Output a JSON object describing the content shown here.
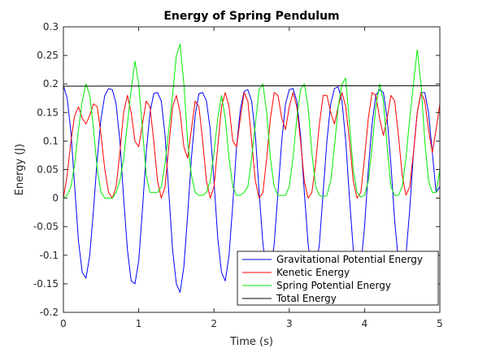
{
  "chart_data": {
    "type": "line",
    "title": "Energy of Spring Pendulum",
    "xlabel": "Time (s)",
    "ylabel": "Energy (J)",
    "xlim": [
      0,
      5
    ],
    "ylim": [
      -0.2,
      0.3
    ],
    "xticks": [
      0,
      1,
      2,
      3,
      4,
      5
    ],
    "xtick_labels": [
      "0",
      "1",
      "2",
      "3",
      "4",
      "5"
    ],
    "yticks": [
      -0.2,
      -0.15,
      -0.1,
      -0.05,
      0,
      0.05,
      0.1,
      0.15,
      0.2,
      0.25,
      0.3
    ],
    "ytick_labels": [
      "-0.2",
      "-0.15",
      "-0.1",
      "-0.05",
      "0",
      "0.05",
      "0.1",
      "0.15",
      "0.2",
      "0.25",
      "0.3"
    ],
    "grid": false,
    "legend_position": "bottom-right",
    "series": [
      {
        "name": "Gravitational Potential Energy",
        "color": "#0000ff",
        "x": [
          0,
          0.05,
          0.1,
          0.15,
          0.2,
          0.25,
          0.3,
          0.35,
          0.4,
          0.45,
          0.5,
          0.55,
          0.6,
          0.65,
          0.7,
          0.75,
          0.8,
          0.85,
          0.9,
          0.95,
          1.0,
          1.05,
          1.1,
          1.15,
          1.2,
          1.25,
          1.3,
          1.35,
          1.4,
          1.45,
          1.5,
          1.55,
          1.6,
          1.65,
          1.7,
          1.75,
          1.8,
          1.85,
          1.9,
          1.95,
          2.0,
          2.05,
          2.1,
          2.15,
          2.2,
          2.25,
          2.3,
          2.35,
          2.4,
          2.45,
          2.5,
          2.55,
          2.6,
          2.65,
          2.7,
          2.75,
          2.8,
          2.85,
          2.9,
          2.95,
          3.0,
          3.05,
          3.1,
          3.15,
          3.2,
          3.25,
          3.3,
          3.35,
          3.4,
          3.45,
          3.5,
          3.55,
          3.6,
          3.65,
          3.7,
          3.75,
          3.8,
          3.85,
          3.9,
          3.95,
          4.0,
          4.05,
          4.1,
          4.15,
          4.2,
          4.25,
          4.3,
          4.35,
          4.4,
          4.45,
          4.5,
          4.55,
          4.6,
          4.65,
          4.7,
          4.75,
          4.8,
          4.85,
          4.9,
          4.95,
          5.0
        ],
        "y": [
          0.197,
          0.175,
          0.115,
          0.02,
          -0.075,
          -0.13,
          -0.14,
          -0.1,
          -0.02,
          0.07,
          0.14,
          0.18,
          0.192,
          0.19,
          0.165,
          0.1,
          0.0,
          -0.09,
          -0.145,
          -0.15,
          -0.11,
          -0.02,
          0.08,
          0.15,
          0.183,
          0.185,
          0.17,
          0.11,
          0.01,
          -0.09,
          -0.15,
          -0.165,
          -0.12,
          -0.03,
          0.07,
          0.145,
          0.183,
          0.185,
          0.17,
          0.12,
          0.03,
          -0.07,
          -0.13,
          -0.145,
          -0.1,
          -0.01,
          0.09,
          0.155,
          0.187,
          0.19,
          0.17,
          0.11,
          0.01,
          -0.08,
          -0.13,
          -0.13,
          -0.08,
          0.01,
          0.1,
          0.165,
          0.19,
          0.192,
          0.17,
          0.11,
          0.01,
          -0.08,
          -0.13,
          -0.13,
          -0.08,
          0.01,
          0.1,
          0.165,
          0.192,
          0.195,
          0.17,
          0.1,
          0.0,
          -0.09,
          -0.13,
          -0.12,
          -0.05,
          0.05,
          0.13,
          0.18,
          0.19,
          0.185,
          0.14,
          0.06,
          -0.04,
          -0.11,
          -0.13,
          -0.1,
          -0.02,
          0.08,
          0.15,
          0.185,
          0.185,
          0.15,
          0.08,
          0.01,
          0.02
        ]
      },
      {
        "name": "Kenetic Energy",
        "color": "#ff0000",
        "x": [
          0,
          0.05,
          0.1,
          0.15,
          0.2,
          0.25,
          0.3,
          0.35,
          0.4,
          0.45,
          0.5,
          0.55,
          0.6,
          0.65,
          0.7,
          0.75,
          0.8,
          0.85,
          0.9,
          0.95,
          1.0,
          1.05,
          1.1,
          1.15,
          1.2,
          1.25,
          1.3,
          1.35,
          1.4,
          1.45,
          1.5,
          1.55,
          1.6,
          1.65,
          1.7,
          1.75,
          1.8,
          1.85,
          1.9,
          1.95,
          2.0,
          2.05,
          2.1,
          2.15,
          2.2,
          2.25,
          2.3,
          2.35,
          2.4,
          2.45,
          2.5,
          2.55,
          2.6,
          2.65,
          2.7,
          2.75,
          2.8,
          2.85,
          2.9,
          2.95,
          3.0,
          3.05,
          3.1,
          3.15,
          3.2,
          3.25,
          3.3,
          3.35,
          3.4,
          3.45,
          3.5,
          3.55,
          3.6,
          3.65,
          3.7,
          3.75,
          3.8,
          3.85,
          3.9,
          3.95,
          4.0,
          4.05,
          4.1,
          4.15,
          4.2,
          4.25,
          4.3,
          4.35,
          4.4,
          4.45,
          4.5,
          4.55,
          4.6,
          4.65,
          4.7,
          4.75,
          4.8,
          4.85,
          4.9,
          4.95,
          5.0
        ],
        "y": [
          0.0,
          0.04,
          0.1,
          0.145,
          0.16,
          0.14,
          0.13,
          0.145,
          0.165,
          0.16,
          0.11,
          0.05,
          0.01,
          0.0,
          0.02,
          0.08,
          0.15,
          0.18,
          0.15,
          0.1,
          0.09,
          0.13,
          0.17,
          0.16,
          0.1,
          0.03,
          0.0,
          0.02,
          0.09,
          0.16,
          0.18,
          0.15,
          0.09,
          0.07,
          0.12,
          0.17,
          0.16,
          0.1,
          0.03,
          0.0,
          0.02,
          0.09,
          0.16,
          0.185,
          0.16,
          0.1,
          0.09,
          0.14,
          0.185,
          0.17,
          0.1,
          0.03,
          0.0,
          0.01,
          0.07,
          0.14,
          0.185,
          0.18,
          0.14,
          0.12,
          0.16,
          0.185,
          0.16,
          0.1,
          0.03,
          0.0,
          0.01,
          0.06,
          0.13,
          0.18,
          0.18,
          0.15,
          0.13,
          0.16,
          0.185,
          0.16,
          0.1,
          0.03,
          0.0,
          0.01,
          0.07,
          0.14,
          0.185,
          0.18,
          0.14,
          0.11,
          0.14,
          0.18,
          0.17,
          0.11,
          0.04,
          0.005,
          0.02,
          0.08,
          0.15,
          0.185,
          0.17,
          0.12,
          0.08,
          0.12,
          0.165
        ]
      },
      {
        "name": "Spring Potential Energy",
        "color": "#00ee00",
        "x": [
          0,
          0.05,
          0.1,
          0.15,
          0.2,
          0.25,
          0.3,
          0.35,
          0.4,
          0.45,
          0.5,
          0.55,
          0.6,
          0.65,
          0.7,
          0.75,
          0.8,
          0.85,
          0.9,
          0.95,
          1.0,
          1.05,
          1.1,
          1.15,
          1.2,
          1.25,
          1.3,
          1.35,
          1.4,
          1.45,
          1.5,
          1.55,
          1.6,
          1.65,
          1.7,
          1.75,
          1.8,
          1.85,
          1.9,
          1.95,
          2.0,
          2.05,
          2.1,
          2.15,
          2.2,
          2.25,
          2.3,
          2.35,
          2.4,
          2.45,
          2.5,
          2.55,
          2.6,
          2.65,
          2.7,
          2.75,
          2.8,
          2.85,
          2.9,
          2.95,
          3.0,
          3.05,
          3.1,
          3.15,
          3.2,
          3.25,
          3.3,
          3.35,
          3.4,
          3.45,
          3.5,
          3.55,
          3.6,
          3.65,
          3.7,
          3.75,
          3.8,
          3.85,
          3.9,
          3.95,
          4.0,
          4.05,
          4.1,
          4.15,
          4.2,
          4.25,
          4.3,
          4.35,
          4.4,
          4.45,
          4.5,
          4.55,
          4.6,
          4.65,
          4.7,
          4.75,
          4.8,
          4.85,
          4.9,
          4.95,
          5.0
        ],
        "y": [
          0.0,
          0.005,
          0.02,
          0.06,
          0.12,
          0.17,
          0.2,
          0.18,
          0.12,
          0.05,
          0.01,
          0.0,
          0.0,
          0.0,
          0.01,
          0.03,
          0.07,
          0.13,
          0.19,
          0.24,
          0.2,
          0.12,
          0.04,
          0.01,
          0.01,
          0.01,
          0.02,
          0.06,
          0.12,
          0.18,
          0.25,
          0.27,
          0.2,
          0.1,
          0.04,
          0.01,
          0.005,
          0.005,
          0.01,
          0.03,
          0.08,
          0.14,
          0.18,
          0.14,
          0.07,
          0.02,
          0.005,
          0.005,
          0.01,
          0.02,
          0.07,
          0.13,
          0.19,
          0.2,
          0.15,
          0.07,
          0.02,
          0.005,
          0.005,
          0.005,
          0.02,
          0.07,
          0.14,
          0.19,
          0.2,
          0.16,
          0.08,
          0.02,
          0.005,
          0.002,
          0.005,
          0.03,
          0.09,
          0.16,
          0.2,
          0.21,
          0.13,
          0.05,
          0.01,
          0.002,
          0.005,
          0.03,
          0.09,
          0.16,
          0.2,
          0.17,
          0.09,
          0.02,
          0.005,
          0.005,
          0.02,
          0.07,
          0.14,
          0.2,
          0.26,
          0.2,
          0.1,
          0.03,
          0.01,
          0.01,
          0.05
        ]
      },
      {
        "name": "Total Energy",
        "color": "#000000",
        "x": [
          0,
          5
        ],
        "y": [
          0.196,
          0.197
        ]
      }
    ]
  }
}
